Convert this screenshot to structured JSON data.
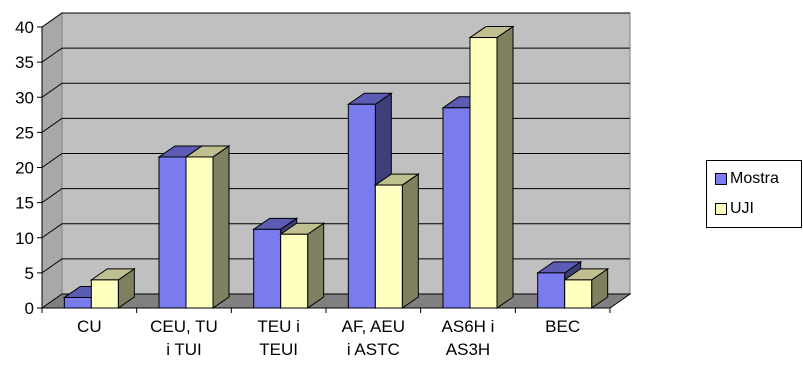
{
  "chart_data": {
    "type": "bar",
    "style": "3d-clustered-column",
    "categories": [
      [
        "CU"
      ],
      [
        "CEU, TU",
        "i TUI"
      ],
      [
        "TEU i",
        "TEUI"
      ],
      [
        "AF,  AEU",
        "i ASTC"
      ],
      [
        "AS6H i",
        "AS3H"
      ],
      [
        "BEC"
      ]
    ],
    "series": [
      {
        "name": "Mostra",
        "values": [
          1.5,
          21.5,
          11.2,
          29,
          28.5,
          5
        ],
        "color": "#7b7bf0"
      },
      {
        "name": "UJI",
        "values": [
          4,
          21.5,
          10.5,
          17.5,
          38.5,
          4
        ],
        "color": "#ffffc0"
      }
    ],
    "ylim": [
      0,
      40
    ],
    "yticks": [
      "0",
      "5",
      "10",
      "15",
      "20",
      "25",
      "30",
      "35",
      "40"
    ],
    "grid": true,
    "legend_position": "right",
    "colors": {
      "back_wall": "#c0c0c0",
      "floor": "#808080",
      "gridline": "#000000"
    }
  }
}
